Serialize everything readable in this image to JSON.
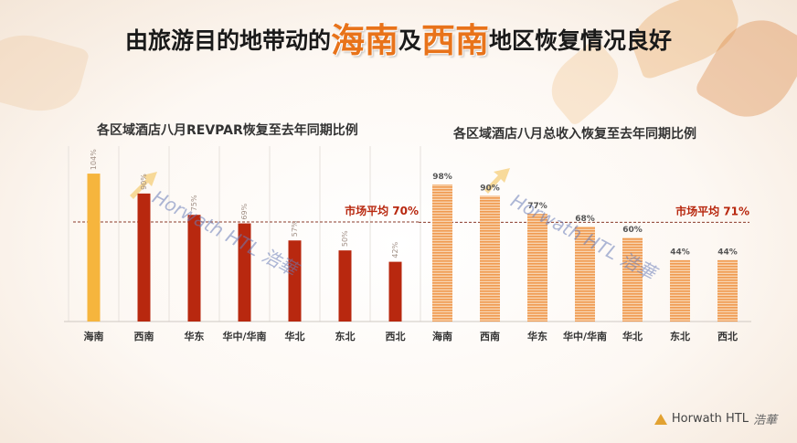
{
  "title": {
    "prefix": "由旅游目的地带动的",
    "hl1": "海南",
    "mid": "及",
    "hl2": "西南",
    "suffix": "地区恢复情况良好"
  },
  "watermark": "Horwath HTL 浩華",
  "logo": {
    "text": "Horwath HTL",
    "cn": "浩華",
    "icon": "triangle-logo-icon"
  },
  "colors": {
    "left_highlight": "#f6b53d",
    "left_bar": "#b8280f",
    "right_bar": "#f2a35e",
    "avg_line": "#8a3a2a",
    "avg_text": "#b8280f"
  },
  "chart_data": [
    {
      "type": "bar",
      "title": "各区域酒店八月REVPAR恢复至去年同期比例",
      "categories": [
        "海南",
        "西南",
        "华东",
        "华中/华南",
        "华北",
        "东北",
        "西北"
      ],
      "values": [
        104,
        90,
        75,
        69,
        57,
        50,
        42
      ],
      "value_labels": [
        "104%",
        "90%",
        "75%",
        "69%",
        "57%",
        "50%",
        "42%"
      ],
      "average": 70,
      "average_label": "市场平均 70%",
      "ylim": [
        0,
        115
      ],
      "grid": "vertical",
      "xlabel": "",
      "ylabel": ""
    },
    {
      "type": "bar",
      "title": "各区域酒店八月总收入恢复至去年同期比例",
      "categories": [
        "海南",
        "西南",
        "华东",
        "华中/华南",
        "华北",
        "东北",
        "西北"
      ],
      "values": [
        98,
        90,
        77,
        68,
        60,
        44,
        44
      ],
      "value_labels": [
        "98%",
        "90%",
        "77%",
        "68%",
        "60%",
        "44%",
        "44%"
      ],
      "average": 71,
      "average_label": "市场平均 71%",
      "ylim": [
        0,
        115
      ],
      "grid": "none",
      "xlabel": "",
      "ylabel": ""
    }
  ]
}
